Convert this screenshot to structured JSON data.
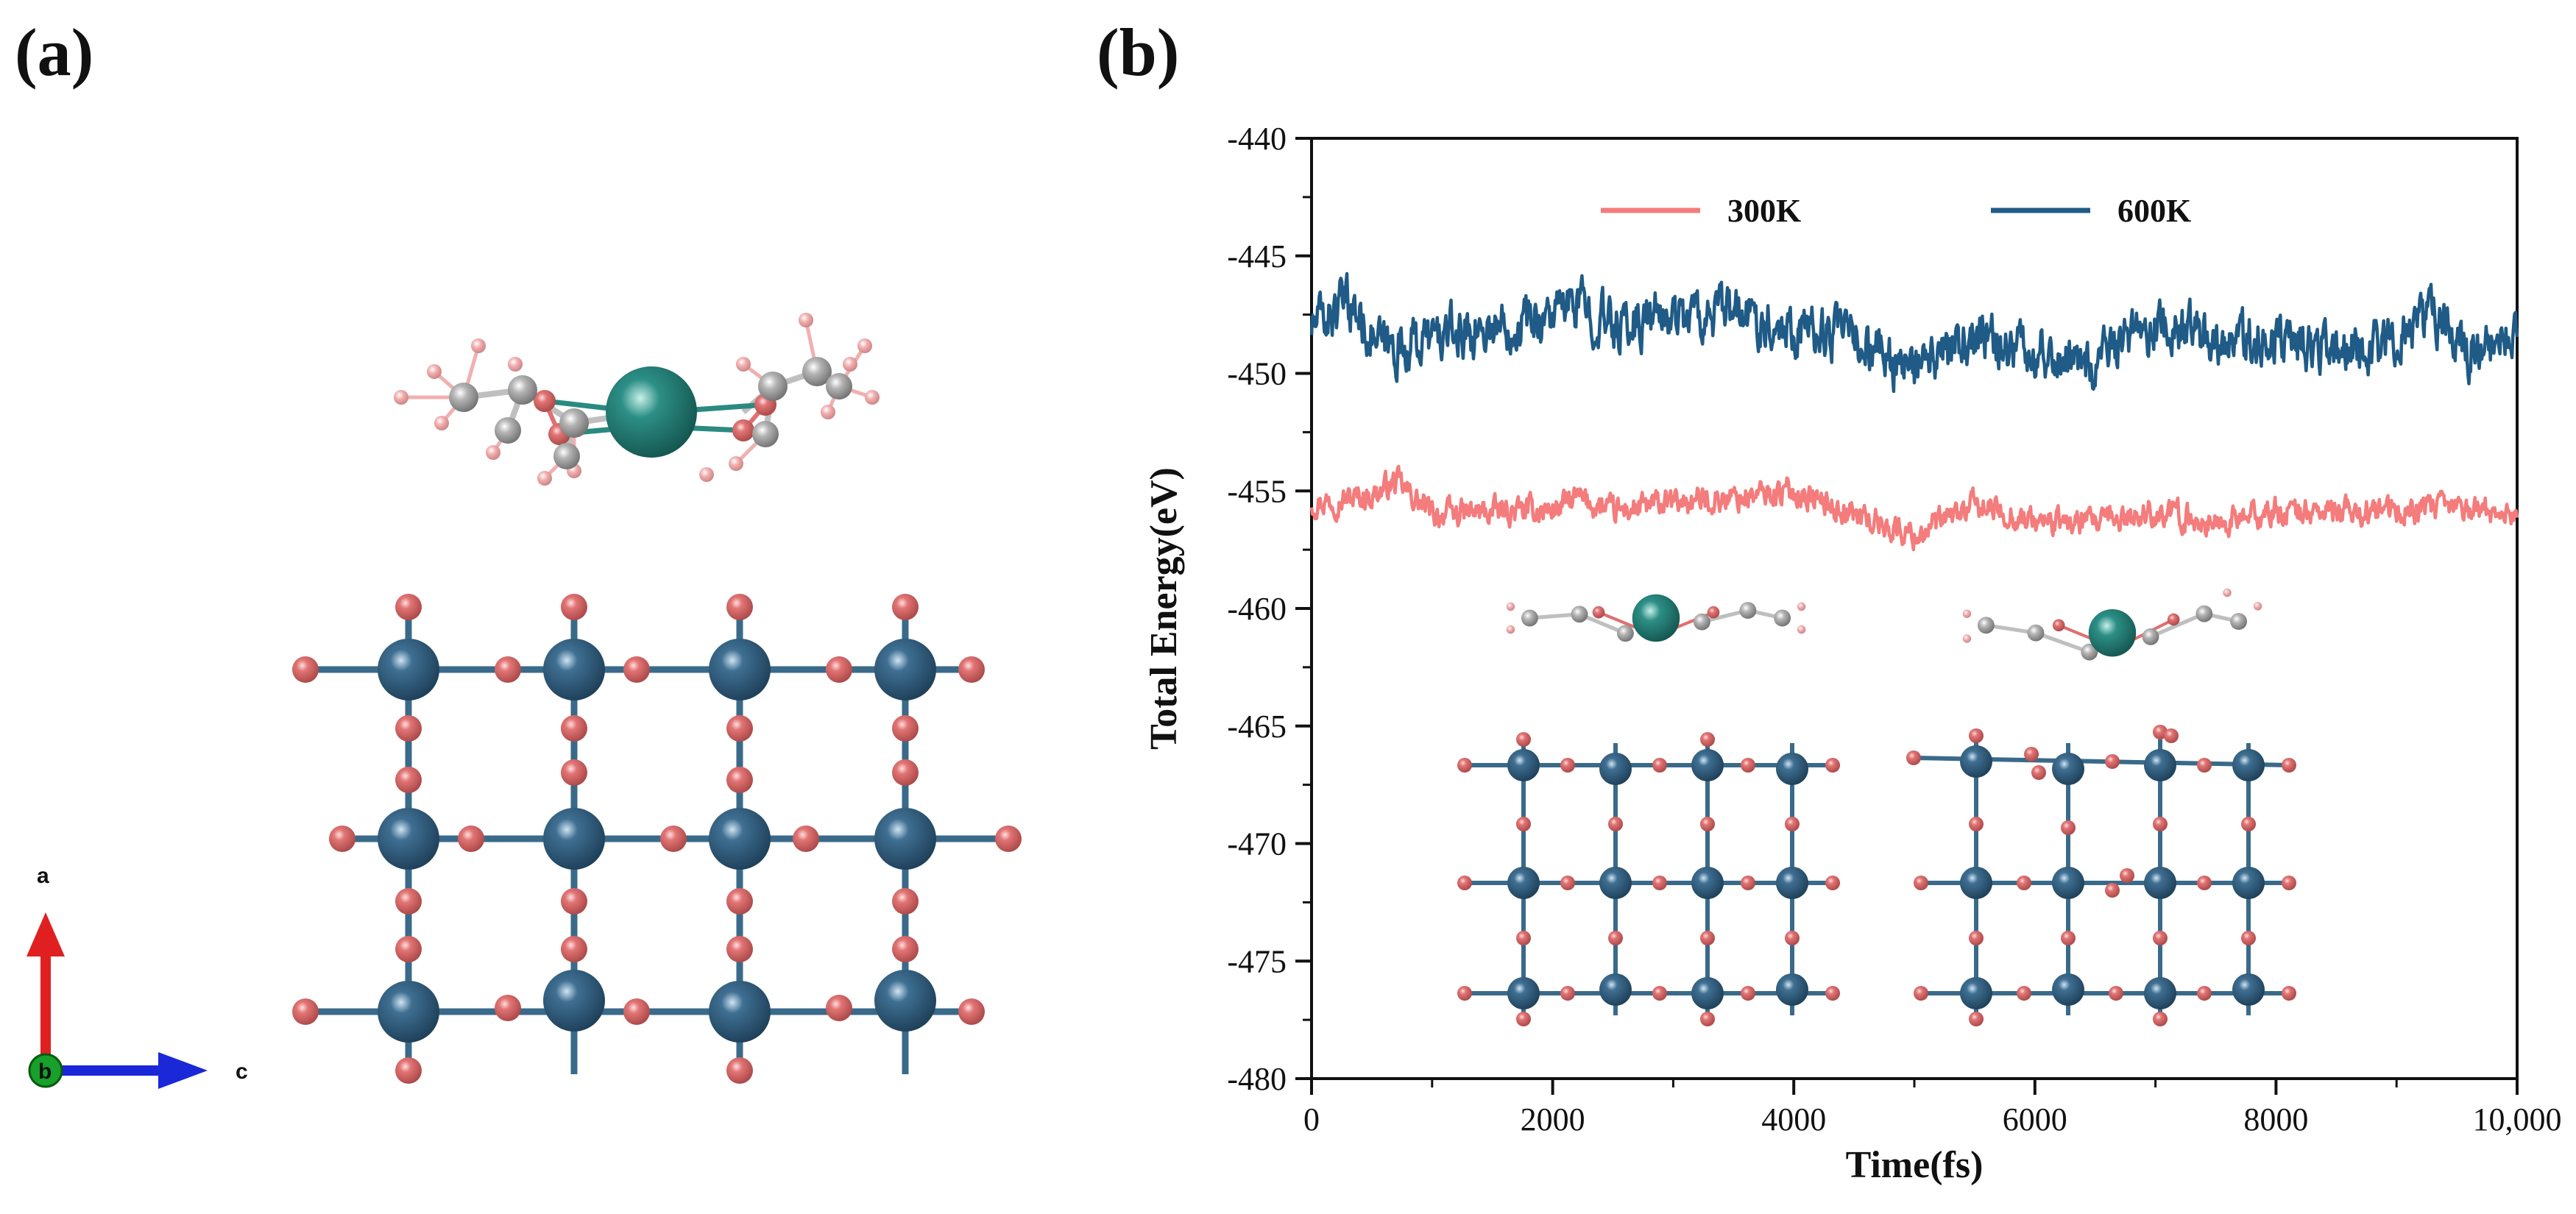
{
  "panels": {
    "a": "(a)",
    "b": "(b)"
  },
  "compass": {
    "a": "a",
    "b": "b",
    "c": "c"
  },
  "colors": {
    "oxygen": "#e07070",
    "ti": "#2d5878",
    "metal_center": "#2a8a80",
    "carbon": "#a8a8a8",
    "hydrogen": "#f0a8a8",
    "series_300": "#f47c7c",
    "series_600": "#1f5b86"
  },
  "chart_data": {
    "type": "line",
    "xlabel": "Time(fs)",
    "ylabel": "Total Energy(eV)",
    "xlim": [
      0,
      10000
    ],
    "ylim": [
      -480,
      -440
    ],
    "xticks": [
      0,
      2000,
      4000,
      6000,
      8000,
      10000
    ],
    "xtick_labels": [
      "0",
      "2000",
      "4000",
      "6000",
      "8000",
      "10,000"
    ],
    "yticks": [
      -440,
      -445,
      -450,
      -455,
      -460,
      -465,
      -470,
      -475,
      -480
    ],
    "ytick_labels": [
      "-440",
      "-445",
      "-450",
      "-455",
      "-460",
      "-465",
      "-470",
      "-475",
      "-480"
    ],
    "legend": [
      "300K",
      "600K"
    ],
    "legend_position": "top",
    "series": [
      {
        "name": "300K",
        "x": [
          0,
          500,
          700,
          1000,
          1500,
          2000,
          2200,
          2500,
          3000,
          3500,
          4000,
          4500,
          5000,
          5200,
          5500,
          6000,
          6500,
          7000,
          7500,
          8000,
          8500,
          9000,
          9500,
          10000
        ],
        "values": [
          -455.5,
          -455.2,
          -454.6,
          -456.0,
          -455.9,
          -455.8,
          -455.3,
          -455.9,
          -455.5,
          -455.3,
          -455.0,
          -456.0,
          -456.9,
          -456.4,
          -455.6,
          -456.3,
          -456.4,
          -455.9,
          -456.4,
          -455.9,
          -455.9,
          -455.9,
          -455.7,
          -456.0
        ]
      },
      {
        "name": "600K",
        "x": [
          0,
          300,
          600,
          1000,
          1500,
          2000,
          2200,
          2500,
          3000,
          3500,
          4000,
          4500,
          5000,
          5500,
          6000,
          6500,
          7000,
          7500,
          8000,
          8500,
          9000,
          9300,
          9600,
          10000
        ],
        "values": [
          -448.0,
          -447.0,
          -449.0,
          -448.5,
          -448.0,
          -447.5,
          -447.0,
          -448.0,
          -447.5,
          -447.5,
          -448.0,
          -448.5,
          -450.0,
          -448.5,
          -449.0,
          -449.5,
          -448.0,
          -448.5,
          -448.5,
          -449.0,
          -448.5,
          -447.5,
          -449.0,
          -448.5
        ]
      }
    ]
  }
}
